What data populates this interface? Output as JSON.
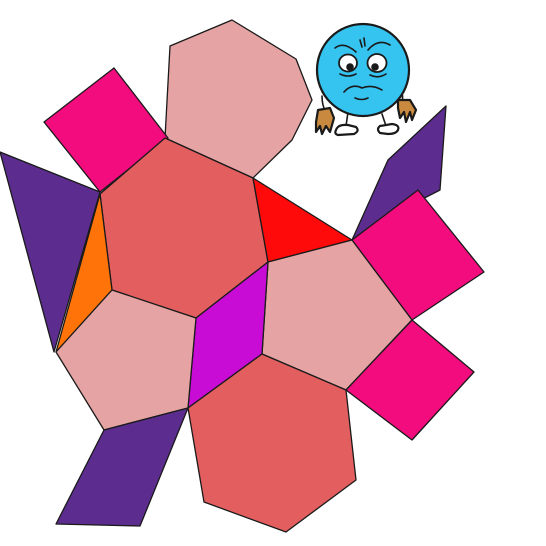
{
  "puzzle": {
    "colors": {
      "hexagon": "#e35f5f",
      "pentagon": "#e5a3a3",
      "square": "#f20c7e",
      "parallelogram": "#5c2d8f",
      "rhombus": "#c80cd6",
      "triangle": "#ff0a0a",
      "kite": "#ff7308",
      "outline": "#1a1a1a"
    },
    "pieces": [
      {
        "name": "top-pentagon",
        "shape": "pentagon",
        "color": "pentagon",
        "interactable": true
      },
      {
        "name": "top-left-square",
        "shape": "square",
        "color": "square",
        "interactable": true
      },
      {
        "name": "left-parallelogram",
        "shape": "parallelogram",
        "color": "parallelogram",
        "interactable": true
      },
      {
        "name": "center-hexagon",
        "shape": "hexagon",
        "color": "hexagon",
        "interactable": true
      },
      {
        "name": "orange-kite",
        "shape": "kite",
        "color": "kite",
        "interactable": true
      },
      {
        "name": "red-triangle",
        "shape": "triangle",
        "color": "triangle",
        "interactable": true
      },
      {
        "name": "right-parallelogram",
        "shape": "parallelogram",
        "color": "parallelogram",
        "interactable": true
      },
      {
        "name": "right-square-upper",
        "shape": "square",
        "color": "square",
        "interactable": true
      },
      {
        "name": "right-pentagon",
        "shape": "pentagon",
        "color": "pentagon",
        "interactable": true
      },
      {
        "name": "right-square-lower",
        "shape": "square",
        "color": "square",
        "interactable": true
      },
      {
        "name": "magenta-rhombus",
        "shape": "rhombus",
        "color": "rhombus",
        "interactable": true
      },
      {
        "name": "left-pentagon",
        "shape": "pentagon",
        "color": "pentagon",
        "interactable": true
      },
      {
        "name": "bottom-hexagon",
        "shape": "hexagon",
        "color": "hexagon",
        "interactable": true
      },
      {
        "name": "bottom-left-parallelogram",
        "shape": "parallelogram",
        "color": "parallelogram",
        "interactable": true
      }
    ]
  },
  "mascot": {
    "name": "worried-blue-ball-mascot",
    "body_color": "#35c3f0",
    "limb_color": "#c98a3f",
    "mood": "worried"
  }
}
